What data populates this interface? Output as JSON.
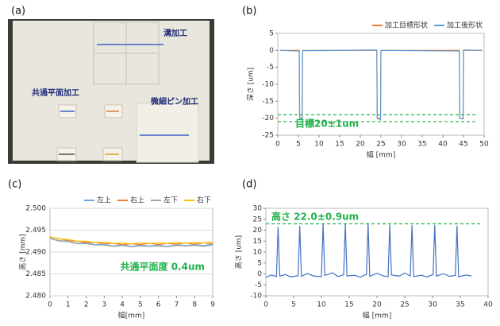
{
  "photo": {
    "label": "(a)",
    "annotations": [
      "溝加工",
      "共通平面加工",
      "微細ピン加工"
    ]
  },
  "chart_data": [
    {
      "type": "line",
      "label": "(b)",
      "xlabel": "幅 [mm]",
      "ylabel": "深さ [um]",
      "x": [
        0.5,
        5.2,
        5.3,
        5.9,
        6.0,
        24.0,
        24.1,
        24.9,
        25.0,
        44.0,
        44.1,
        44.9,
        45.0,
        49.5
      ],
      "series": [
        {
          "name": "加工目標形状",
          "color": "#ed7d31",
          "values": [
            0,
            0,
            -20,
            -20,
            0,
            0,
            -20,
            -20,
            0,
            0,
            -20,
            -20,
            0,
            0
          ]
        },
        {
          "name": "加工後形状",
          "color": "#5b9bd5",
          "values": [
            0,
            -0.2,
            -20,
            -20.3,
            -0.1,
            0.1,
            -20,
            -20.5,
            0,
            -0.2,
            -20,
            -20.2,
            0.1,
            0
          ]
        }
      ],
      "xlim": [
        0,
        50
      ],
      "ylim": [
        -25,
        5
      ],
      "xticks": [
        0,
        5,
        10,
        15,
        20,
        25,
        30,
        35,
        40,
        45,
        50
      ],
      "yticks": [
        -25,
        -20,
        -15,
        -10,
        -5,
        0,
        5
      ],
      "grid": false,
      "legend": "top-right",
      "annotation": "目標20±1um",
      "ref_lines": {
        "values": [
          -19,
          -21
        ],
        "color": "#22b14c"
      }
    },
    {
      "type": "line",
      "label": "(c)",
      "xlabel": "幅[mm]",
      "ylabel": "高さ [mm]",
      "x": [
        0,
        0.5,
        1,
        1.5,
        2,
        2.5,
        3,
        3.5,
        4,
        4.5,
        5,
        5.5,
        6,
        6.5,
        7,
        7.5,
        8,
        8.5,
        9
      ],
      "series": [
        {
          "name": "左上",
          "color": "#6fa8dc",
          "values": [
            2.4932,
            2.4926,
            2.4925,
            2.492,
            2.4921,
            2.4917,
            2.4918,
            2.4914,
            2.4917,
            2.4913,
            2.4916,
            2.4914,
            2.4916,
            2.4913,
            2.4917,
            2.4915,
            2.4917,
            2.4915,
            2.4918
          ]
        },
        {
          "name": "右上",
          "color": "#ed7d31",
          "values": [
            2.4934,
            2.4931,
            2.4926,
            2.4925,
            2.4922,
            2.4922,
            2.4919,
            2.492,
            2.4917,
            2.4919,
            2.4917,
            2.492,
            2.4917,
            2.492,
            2.4918,
            2.4921,
            2.4918,
            2.4921,
            2.4919
          ]
        },
        {
          "name": "左下",
          "color": "#a5a5a5",
          "values": [
            2.4931,
            2.4925,
            2.4924,
            2.4919,
            2.4919,
            2.4916,
            2.4916,
            2.4913,
            2.4915,
            2.4912,
            2.4914,
            2.4913,
            2.4914,
            2.4912,
            2.4915,
            2.4914,
            2.4915,
            2.4913,
            2.4916
          ]
        },
        {
          "name": "右下",
          "color": "#ffc000",
          "values": [
            2.4935,
            2.493,
            2.4929,
            2.4925,
            2.4925,
            2.4922,
            2.4923,
            2.492,
            2.4921,
            2.4919,
            2.4921,
            2.492,
            2.4921,
            2.492,
            2.4922,
            2.492,
            2.4922,
            2.4921,
            2.4923
          ]
        }
      ],
      "xlim": [
        0,
        9
      ],
      "ylim": [
        2.48,
        2.5
      ],
      "xticks": [
        0,
        1,
        2,
        3,
        4,
        5,
        6,
        7,
        8,
        9
      ],
      "yticks": [
        {
          "value": 2.48,
          "label": "2.480"
        },
        {
          "value": 2.485,
          "label": "2.485"
        },
        {
          "value": 2.49,
          "label": "2.490"
        },
        {
          "value": 2.495,
          "label": "2.495"
        },
        {
          "value": 2.5,
          "label": "2.500"
        }
      ],
      "grid": true,
      "legend": "top-right",
      "annotation": "共通平面度 0.4um"
    },
    {
      "type": "line",
      "label": "(d)",
      "xlabel": "幅 [mm]",
      "ylabel": "高さ [um]",
      "x": [
        0,
        1,
        1.9,
        2.2,
        2.5,
        3.5,
        4.5,
        5.8,
        6.1,
        6.4,
        7.5,
        8.5,
        10,
        10.3,
        10.6,
        12,
        13,
        14,
        14.3,
        14.6,
        16,
        17,
        18.1,
        18.4,
        18.7,
        20,
        21,
        22,
        22.3,
        22.6,
        24,
        25,
        26,
        26.3,
        26.6,
        28,
        29,
        30.1,
        30.4,
        30.7,
        32,
        33,
        34.1,
        34.4,
        34.7,
        36,
        37
      ],
      "series": [
        {
          "color": "#4472c4",
          "values": [
            -1.5,
            -0.5,
            -1.2,
            21.5,
            -1.0,
            -0.3,
            -1.4,
            -0.8,
            22.0,
            -1.1,
            0.2,
            -0.9,
            -1.3,
            23.0,
            -0.7,
            0.5,
            -1.2,
            -0.4,
            22.8,
            -1.0,
            -0.6,
            -1.5,
            -0.2,
            22.9,
            -1.1,
            0.3,
            -0.8,
            -1.3,
            22.5,
            -0.5,
            -1.0,
            0.4,
            -0.9,
            22.3,
            -1.2,
            -0.6,
            -1.4,
            -0.3,
            22.4,
            -1.0,
            0.1,
            -1.1,
            -0.7,
            22.1,
            -1.3,
            -0.5,
            -0.9
          ]
        }
      ],
      "xlim": [
        0,
        40
      ],
      "ylim": [
        -10,
        30
      ],
      "xticks": [
        0,
        5,
        10,
        15,
        20,
        25,
        30,
        35,
        40
      ],
      "yticks": [
        -10,
        -5,
        0,
        5,
        10,
        15,
        20,
        25,
        30
      ],
      "grid": false,
      "annotation": "高さ 22.0±0.9um",
      "ref_lines": {
        "values": [
          22.9
        ],
        "color": "#22b14c"
      }
    }
  ]
}
